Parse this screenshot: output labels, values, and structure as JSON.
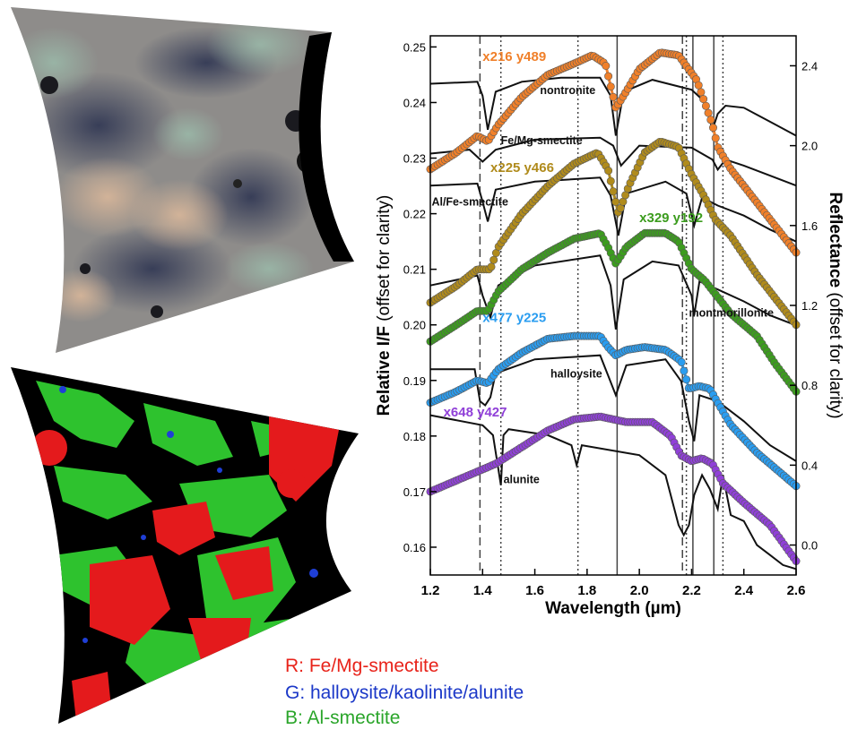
{
  "images": {
    "color_composite": "rgb-composite-image",
    "mineral_map": "mineral-map-image",
    "colors": {
      "background": "#000000",
      "fe_mg": "#e41a1c",
      "al_smectite": "#2ec22e",
      "kaolinite": "#1f3fd6"
    }
  },
  "map_legend": {
    "r": {
      "label": "R: Fe/Mg-smectite",
      "color": "#e8231a"
    },
    "g": {
      "label": "G: halloysite/kaolinite/alunite",
      "color": "#1b38c8"
    },
    "b": {
      "label": "B: Al-smectite",
      "color": "#2aa52a"
    }
  },
  "chart_data": {
    "type": "line",
    "xlabel": "Wavelength (µm)",
    "ylabel_left": {
      "bold": "Relative I/F",
      "normal": " (offset for clarity)"
    },
    "ylabel_right": {
      "bold": "Reflectance",
      "normal": " (offset for clarity)"
    },
    "xlim": [
      1.2,
      2.6
    ],
    "ylim_left": [
      0.155,
      0.252
    ],
    "ylim_right": [
      -0.15,
      2.55
    ],
    "xticks": [
      "1.2",
      "1.4",
      "1.6",
      "1.8",
      "2.0",
      "2.2",
      "2.4",
      "2.6"
    ],
    "yticks_left": [
      "0.16",
      "0.17",
      "0.18",
      "0.19",
      "0.20",
      "0.21",
      "0.22",
      "0.23",
      "0.24",
      "0.25"
    ],
    "yticks_right": [
      "0.0",
      "0.4",
      "0.8",
      "1.2",
      "1.6",
      "2.0",
      "2.4"
    ],
    "reference_lines": [
      {
        "x": 1.39,
        "style": "dashed"
      },
      {
        "x": 1.47,
        "style": "dotted"
      },
      {
        "x": 1.765,
        "style": "dotted"
      },
      {
        "x": 1.915,
        "style": "solid"
      },
      {
        "x": 2.165,
        "style": "dashed"
      },
      {
        "x": 2.18,
        "style": "dotted"
      },
      {
        "x": 2.205,
        "style": "solid"
      },
      {
        "x": 2.285,
        "style": "solid"
      },
      {
        "x": 2.32,
        "style": "dotted"
      }
    ],
    "observed": [
      {
        "name": "x216 y489",
        "color": "#f0802a",
        "x": [
          1.2,
          1.3,
          1.38,
          1.42,
          1.46,
          1.55,
          1.65,
          1.75,
          1.82,
          1.87,
          1.91,
          1.95,
          2.0,
          2.08,
          2.15,
          2.22,
          2.28,
          2.3,
          2.35,
          2.45,
          2.55,
          2.6
        ],
        "y": [
          0.228,
          0.231,
          0.234,
          0.233,
          0.236,
          0.241,
          0.245,
          0.247,
          0.2485,
          0.247,
          0.239,
          0.242,
          0.246,
          0.249,
          0.2485,
          0.244,
          0.236,
          0.232,
          0.228,
          0.222,
          0.216,
          0.213
        ]
      },
      {
        "name": "x225 y466",
        "color": "#b08b1c",
        "x": [
          1.2,
          1.3,
          1.38,
          1.43,
          1.46,
          1.55,
          1.65,
          1.75,
          1.84,
          1.88,
          1.92,
          1.96,
          2.02,
          2.08,
          2.15,
          2.2,
          2.25,
          2.29,
          2.35,
          2.45,
          2.55,
          2.6
        ],
        "y": [
          0.204,
          0.207,
          0.21,
          0.21,
          0.214,
          0.22,
          0.225,
          0.229,
          0.231,
          0.228,
          0.22,
          0.225,
          0.231,
          0.233,
          0.232,
          0.227,
          0.223,
          0.219,
          0.216,
          0.209,
          0.203,
          0.2
        ]
      },
      {
        "name": "x329 y192",
        "color": "#3c9c1e",
        "x": [
          1.2,
          1.3,
          1.38,
          1.42,
          1.46,
          1.55,
          1.65,
          1.75,
          1.85,
          1.88,
          1.91,
          1.95,
          2.02,
          2.1,
          2.15,
          2.2,
          2.25,
          2.3,
          2.35,
          2.45,
          2.52,
          2.6
        ],
        "y": [
          0.197,
          0.2,
          0.2025,
          0.2025,
          0.206,
          0.21,
          0.213,
          0.2155,
          0.2165,
          0.214,
          0.211,
          0.214,
          0.2165,
          0.2165,
          0.215,
          0.21,
          0.208,
          0.205,
          0.202,
          0.198,
          0.193,
          0.188
        ]
      },
      {
        "name": "x477 y225",
        "color": "#2a9df0",
        "x": [
          1.2,
          1.3,
          1.38,
          1.42,
          1.46,
          1.55,
          1.65,
          1.75,
          1.85,
          1.88,
          1.91,
          1.95,
          2.02,
          2.1,
          2.16,
          2.19,
          2.23,
          2.27,
          2.3,
          2.35,
          2.45,
          2.55,
          2.6
        ],
        "y": [
          0.186,
          0.188,
          0.19,
          0.1895,
          0.192,
          0.195,
          0.1975,
          0.198,
          0.198,
          0.196,
          0.1945,
          0.1955,
          0.196,
          0.1955,
          0.1935,
          0.1885,
          0.189,
          0.1885,
          0.186,
          0.182,
          0.177,
          0.173,
          0.171
        ]
      },
      {
        "name": "x648 y427",
        "color": "#9040d8",
        "x": [
          1.2,
          1.3,
          1.4,
          1.45,
          1.55,
          1.65,
          1.75,
          1.85,
          1.95,
          2.05,
          2.12,
          2.16,
          2.2,
          2.24,
          2.28,
          2.32,
          2.4,
          2.5,
          2.6
        ],
        "y": [
          0.17,
          0.172,
          0.174,
          0.175,
          0.178,
          0.181,
          0.183,
          0.1835,
          0.1825,
          0.1825,
          0.18,
          0.1765,
          0.1755,
          0.176,
          0.175,
          0.1715,
          0.168,
          0.164,
          0.1575
        ]
      }
    ],
    "references": [
      {
        "name": "nontronite",
        "x": [
          1.2,
          1.38,
          1.4,
          1.42,
          1.45,
          1.55,
          1.7,
          1.85,
          1.89,
          1.91,
          1.94,
          2.05,
          2.2,
          2.25,
          2.28,
          2.3,
          2.33,
          2.4,
          2.5,
          2.6
        ],
        "y": [
          2.31,
          2.32,
          2.25,
          2.08,
          2.27,
          2.32,
          2.34,
          2.34,
          2.25,
          2.05,
          2.27,
          2.33,
          2.28,
          2.22,
          2.08,
          2.16,
          2.2,
          2.19,
          2.12,
          2.05
        ]
      },
      {
        "name": "Fe/Mg-smectite",
        "x": [
          1.2,
          1.35,
          1.4,
          1.45,
          1.6,
          1.85,
          1.9,
          1.93,
          2.0,
          2.2,
          2.28,
          2.3,
          2.33,
          2.4,
          2.5,
          2.6
        ],
        "y": [
          1.96,
          1.98,
          1.92,
          1.98,
          2.03,
          2.04,
          2.0,
          1.9,
          2.0,
          1.99,
          1.93,
          1.88,
          1.93,
          1.9,
          1.85,
          1.8
        ]
      },
      {
        "name": "Al/Fe-smectite",
        "x": [
          1.2,
          1.38,
          1.4,
          1.42,
          1.45,
          1.6,
          1.85,
          1.89,
          1.92,
          1.95,
          2.1,
          2.18,
          2.21,
          2.24,
          2.3,
          2.4,
          2.5,
          2.6
        ],
        "y": [
          1.8,
          1.81,
          1.72,
          1.62,
          1.78,
          1.82,
          1.84,
          1.75,
          1.55,
          1.76,
          1.82,
          1.76,
          1.6,
          1.74,
          1.7,
          1.65,
          1.58,
          1.52
        ]
      },
      {
        "name": "montmorillonite",
        "x": [
          1.2,
          1.38,
          1.4,
          1.43,
          1.46,
          1.6,
          1.85,
          1.89,
          1.91,
          1.94,
          2.05,
          2.15,
          2.2,
          2.21,
          2.23,
          2.3,
          2.4,
          2.5,
          2.6
        ],
        "y": [
          1.3,
          1.35,
          1.25,
          1.14,
          1.3,
          1.4,
          1.45,
          1.3,
          1.08,
          1.33,
          1.42,
          1.4,
          1.25,
          1.15,
          1.32,
          1.28,
          1.22,
          1.15,
          1.1
        ]
      },
      {
        "name": "halloysite",
        "x": [
          1.2,
          1.37,
          1.39,
          1.41,
          1.43,
          1.45,
          1.6,
          1.85,
          1.88,
          1.91,
          1.95,
          2.1,
          2.16,
          2.19,
          2.21,
          2.23,
          2.3,
          2.4,
          2.5,
          2.6
        ],
        "y": [
          0.88,
          0.88,
          0.72,
          0.7,
          0.74,
          0.86,
          0.93,
          0.95,
          0.85,
          0.75,
          0.9,
          0.93,
          0.82,
          0.62,
          0.52,
          0.75,
          0.72,
          0.62,
          0.5,
          0.42
        ]
      },
      {
        "name": "alunite",
        "x": [
          1.2,
          1.4,
          1.44,
          1.47,
          1.48,
          1.5,
          1.65,
          1.74,
          1.76,
          1.78,
          2.0,
          2.1,
          2.15,
          2.17,
          2.19,
          2.21,
          2.24,
          2.27,
          2.3,
          2.32,
          2.35,
          2.4,
          2.45,
          2.5,
          2.55,
          2.6
        ],
        "y": [
          0.65,
          0.6,
          0.55,
          0.3,
          0.55,
          0.58,
          0.55,
          0.5,
          0.4,
          0.5,
          0.45,
          0.35,
          0.1,
          0.05,
          0.1,
          0.25,
          0.35,
          0.28,
          0.18,
          0.35,
          0.15,
          0.12,
          0.0,
          -0.05,
          -0.1,
          -0.12
        ]
      }
    ],
    "labels": [
      {
        "text": "x216 y489",
        "x": 1.4,
        "y": 0.2475,
        "color": "#f0802a"
      },
      {
        "text": "nontronite",
        "x": 1.62,
        "y": 0.2415,
        "color": "#111111"
      },
      {
        "text": "Fe/Mg-smectite",
        "x": 1.47,
        "y": 0.2325,
        "color": "#111111"
      },
      {
        "text": "x225 y466",
        "x": 1.43,
        "y": 0.2275,
        "color": "#b08b1c"
      },
      {
        "text": "Al/Fe-smectite",
        "x": 1.205,
        "y": 0.2215,
        "color": "#111111"
      },
      {
        "text": "x329 y192",
        "x": 2.0,
        "y": 0.2185,
        "color": "#3c9c1e"
      },
      {
        "text": "montmorillonite",
        "x": 2.19,
        "y": 0.2015,
        "color": "#111111"
      },
      {
        "text": "x477 y225",
        "x": 1.4,
        "y": 0.2005,
        "color": "#2a9df0"
      },
      {
        "text": "halloysite",
        "x": 1.66,
        "y": 0.1905,
        "color": "#111111"
      },
      {
        "text": "x648 y427",
        "x": 1.25,
        "y": 0.1835,
        "color": "#9040d8"
      },
      {
        "text": "alunite",
        "x": 1.48,
        "y": 0.1715,
        "color": "#111111"
      }
    ]
  }
}
